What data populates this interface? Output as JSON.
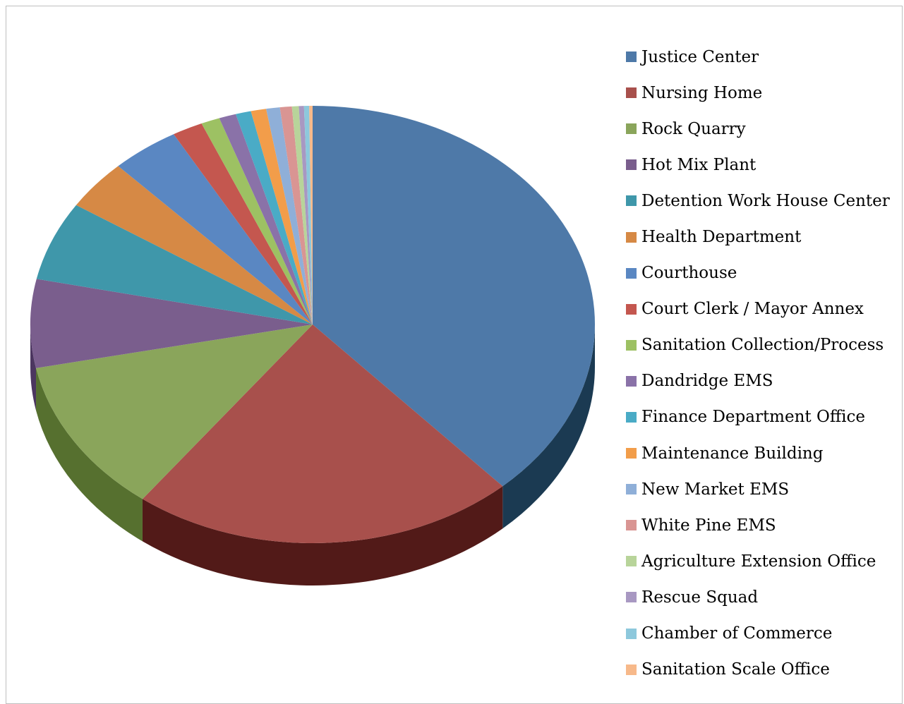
{
  "chart_data": {
    "type": "pie",
    "legend_position": "right",
    "slices": [
      {
        "label": "Justice Center",
        "value": 39.2,
        "color": "#4e79a8",
        "side": "#1b3a52"
      },
      {
        "label": "Nursing Home",
        "value": 22.6,
        "color": "#a8504c",
        "side": "#521a18"
      },
      {
        "label": "Rock Quarry",
        "value": 11.8,
        "color": "#8aa55b",
        "side": "#56702f"
      },
      {
        "label": "Hot Mix Plant",
        "value": 6.7,
        "color": "#7a5e8d",
        "side": "#4c3660"
      },
      {
        "label": "Detention Work House Center",
        "value": 6.0,
        "color": "#3f97aa",
        "side": "#1f5e6d"
      },
      {
        "label": "Health Department",
        "value": 3.8,
        "color": "#d68945",
        "side": "#8a4f1e"
      },
      {
        "label": "Courthouse",
        "value": 4.0,
        "color": "#5a87c2",
        "side": "#2b4f80"
      },
      {
        "label": "Court Clerk / Mayor Annex",
        "value": 1.8,
        "color": "#c4574f",
        "side": "#7d2a25"
      },
      {
        "label": "Sanitation Collection/Process",
        "value": 1.1,
        "color": "#9dc163",
        "side": "#5f7f34"
      },
      {
        "label": "Dandridge EMS",
        "value": 1.0,
        "color": "#8a72a8",
        "side": "#54456e"
      },
      {
        "label": "Finance Department Office",
        "value": 0.9,
        "color": "#4aabc6",
        "side": "#2a6a7d"
      },
      {
        "label": "Maintenance Building",
        "value": 0.9,
        "color": "#f29d4a",
        "side": "#a3621f"
      },
      {
        "label": "New Market EMS",
        "value": 0.8,
        "color": "#8fafd8",
        "side": "#5a7398"
      },
      {
        "label": "White Pine EMS",
        "value": 0.7,
        "color": "#d99593",
        "side": "#955c5a"
      },
      {
        "label": "Agriculture Extension Office",
        "value": 0.4,
        "color": "#b8d49a",
        "side": "#7d9a62"
      },
      {
        "label": "Rescue Squad",
        "value": 0.3,
        "color": "#a898c2",
        "side": "#6f6289"
      },
      {
        "label": "Chamber of Commerce",
        "value": 0.3,
        "color": "#8dc8dc",
        "side": "#56899a"
      },
      {
        "label": "Sanitation Scale Office",
        "value": 0.2,
        "color": "#f7b98a",
        "side": "#b07a52"
      }
    ]
  }
}
